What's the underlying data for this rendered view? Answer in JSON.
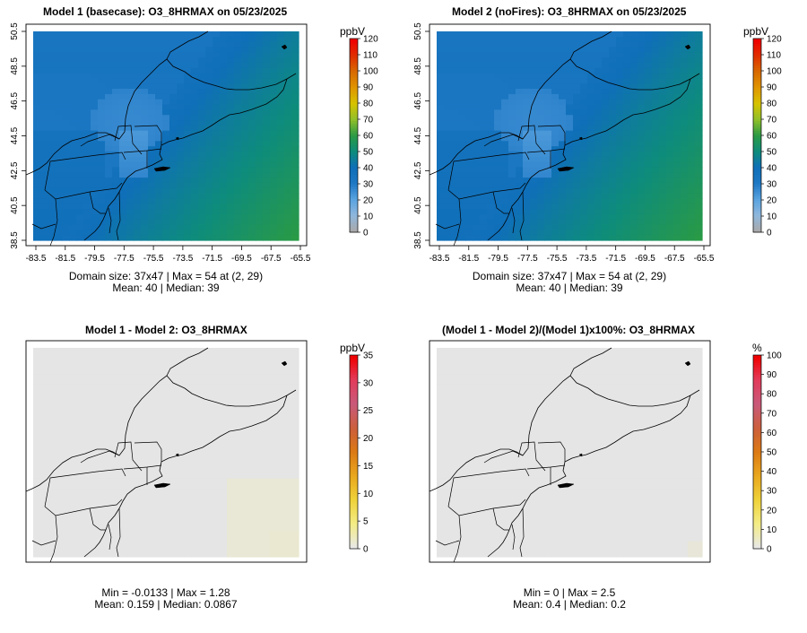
{
  "panels": [
    {
      "title": "Model 1 (basecase): O3_8HRMAX on 05/23/2025",
      "caption1": "Domain size: 37x47 | Max = 54 at (2, 29)",
      "caption2": "Mean: 40 |  Median: 39",
      "legend_unit": "ppbV",
      "legend_ticks": [
        "0",
        "10",
        "20",
        "30",
        "40",
        "50",
        "60",
        "70",
        "80",
        "90",
        "100",
        "110",
        "120"
      ],
      "x_ticks": [
        "-83.5",
        "-81.5",
        "-79.5",
        "-77.5",
        "-75.5",
        "-73.5",
        "-71.5",
        "-69.5",
        "-67.5",
        "-65.5"
      ],
      "y_ticks": [
        "38.5",
        "40.5",
        "42.5",
        "44.5",
        "46.5",
        "48.5",
        "50.5"
      ]
    },
    {
      "title": "Model 2 (noFires): O3_8HRMAX on 05/23/2025",
      "caption1": "Domain size: 37x47 | Max = 54 at (2, 29)",
      "caption2": "Mean: 40 |  Median: 39",
      "legend_unit": "ppbV",
      "legend_ticks": [
        "0",
        "10",
        "20",
        "30",
        "40",
        "50",
        "60",
        "70",
        "80",
        "90",
        "100",
        "110",
        "120"
      ],
      "x_ticks": [
        "-83.5",
        "-81.5",
        "-79.5",
        "-77.5",
        "-75.5",
        "-73.5",
        "-71.5",
        "-69.5",
        "-67.5",
        "-65.5"
      ],
      "y_ticks": [
        "38.5",
        "40.5",
        "42.5",
        "44.5",
        "46.5",
        "48.5",
        "50.5"
      ]
    },
    {
      "title": "Model 1 - Model 2: O3_8HRMAX",
      "caption1": "Min = -0.0133 | Max = 1.28",
      "caption2": "Mean: 0.159 |  Median: 0.0867",
      "legend_unit": "ppbV",
      "legend_ticks": [
        "0",
        "5",
        "10",
        "15",
        "20",
        "25",
        "30",
        "35"
      ]
    },
    {
      "title": "(Model 1 - Model 2)/(Model 1)x100%: O3_8HRMAX",
      "caption1": "Min = 0 | Max = 2.5",
      "caption2": "Mean: 0.4 |  Median: 0.2",
      "legend_unit": "%",
      "legend_ticks": [
        "0",
        "10",
        "20",
        "30",
        "40",
        "50",
        "60",
        "70",
        "80",
        "90",
        "100"
      ]
    }
  ],
  "colors": {
    "conc_scale": [
      "#a9a9a9",
      "#8fb7dd",
      "#5aa3e0",
      "#1e78c4",
      "#0f6fb8",
      "#0e8c7c",
      "#2a9a45",
      "#8fbf2a",
      "#d6c300",
      "#e09600",
      "#d86a00",
      "#e03000",
      "#f00000"
    ],
    "diff_scale": [
      "#e8e8e8",
      "#f3ec86",
      "#efd23a",
      "#e9a81e",
      "#dc7a14",
      "#cc5f3c",
      "#c85a7a",
      "#e23c5c",
      "#f00000"
    ],
    "diff_fill": "#e5e5e5"
  }
}
